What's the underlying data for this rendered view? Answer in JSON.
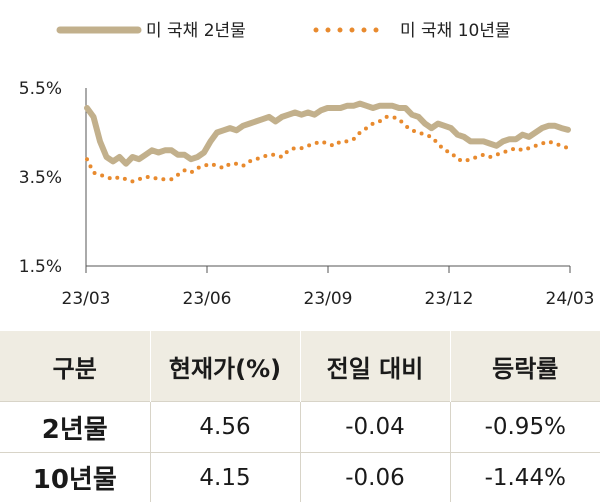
{
  "chart_data": {
    "type": "line",
    "legend_position": "top",
    "grid": false,
    "ylim": [
      1.5,
      5.5
    ],
    "yticks": [
      "5.5%",
      "3.5%",
      "1.5%"
    ],
    "xticks": [
      "23/03",
      "23/06",
      "23/09",
      "23/12",
      "24/03"
    ],
    "colors": {
      "2y": "#c2b08c",
      "10y": "#e88a2e"
    },
    "series": [
      {
        "name": "미 국채 2년물",
        "style": "solid",
        "values": [
          5.05,
          4.85,
          4.3,
          3.95,
          3.85,
          3.95,
          3.8,
          3.95,
          3.9,
          4.0,
          4.1,
          4.05,
          4.1,
          4.1,
          4.0,
          4.0,
          3.9,
          3.95,
          4.05,
          4.3,
          4.5,
          4.55,
          4.6,
          4.55,
          4.65,
          4.7,
          4.75,
          4.8,
          4.85,
          4.75,
          4.85,
          4.9,
          4.95,
          4.9,
          4.95,
          4.9,
          5.0,
          5.05,
          5.05,
          5.05,
          5.1,
          5.1,
          5.15,
          5.1,
          5.05,
          5.1,
          5.1,
          5.1,
          5.05,
          5.05,
          4.9,
          4.85,
          4.7,
          4.6,
          4.7,
          4.65,
          4.6,
          4.45,
          4.4,
          4.3,
          4.3,
          4.3,
          4.25,
          4.2,
          4.3,
          4.35,
          4.35,
          4.45,
          4.4,
          4.5,
          4.6,
          4.65,
          4.65,
          4.6,
          4.56
        ]
      },
      {
        "name": "미 국채 10년물",
        "style": "dotted",
        "values": [
          3.9,
          3.6,
          3.55,
          3.5,
          3.45,
          3.5,
          3.45,
          3.4,
          3.45,
          3.5,
          3.5,
          3.45,
          3.45,
          3.45,
          3.55,
          3.65,
          3.6,
          3.7,
          3.75,
          3.8,
          3.75,
          3.7,
          3.8,
          3.8,
          3.75,
          3.85,
          3.9,
          3.95,
          4.0,
          4.0,
          3.95,
          4.1,
          4.15,
          4.15,
          4.2,
          4.25,
          4.3,
          4.25,
          4.2,
          4.3,
          4.3,
          4.35,
          4.5,
          4.6,
          4.7,
          4.75,
          4.85,
          4.85,
          4.8,
          4.65,
          4.55,
          4.5,
          4.45,
          4.4,
          4.25,
          4.1,
          4.05,
          3.9,
          3.85,
          3.9,
          3.95,
          4.0,
          3.95,
          4.0,
          4.05,
          4.1,
          4.15,
          4.1,
          4.15,
          4.2,
          4.25,
          4.3,
          4.25,
          4.2,
          4.15
        ]
      }
    ]
  },
  "table": {
    "headers": [
      "구분",
      "현재가(%)",
      "전일 대비",
      "등락률"
    ],
    "rows": [
      {
        "label": "2년물",
        "price": "4.56",
        "change": "-0.04",
        "rate": "-0.95%"
      },
      {
        "label": "10년물",
        "price": "4.15",
        "change": "-0.06",
        "rate": "-1.44%"
      }
    ]
  }
}
